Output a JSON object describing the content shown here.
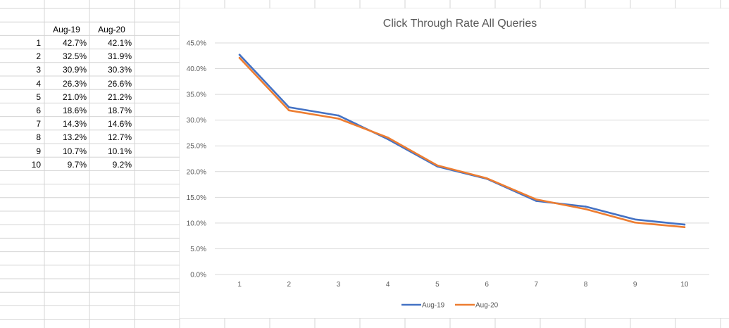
{
  "table": {
    "headers": [
      "Aug-19",
      "Aug-20"
    ],
    "rows": [
      {
        "rank": "1",
        "aug19": "42.7%",
        "aug20": "42.1%"
      },
      {
        "rank": "2",
        "aug19": "32.5%",
        "aug20": "31.9%"
      },
      {
        "rank": "3",
        "aug19": "30.9%",
        "aug20": "30.3%"
      },
      {
        "rank": "4",
        "aug19": "26.3%",
        "aug20": "26.6%"
      },
      {
        "rank": "5",
        "aug19": "21.0%",
        "aug20": "21.2%"
      },
      {
        "rank": "6",
        "aug19": "18.6%",
        "aug20": "18.7%"
      },
      {
        "rank": "7",
        "aug19": "14.3%",
        "aug20": "14.6%"
      },
      {
        "rank": "8",
        "aug19": "13.2%",
        "aug20": "12.7%"
      },
      {
        "rank": "9",
        "aug19": "10.7%",
        "aug20": "10.1%"
      },
      {
        "rank": "10",
        "aug19": "9.7%",
        "aug20": "9.2%"
      }
    ]
  },
  "chart_data": {
    "type": "line",
    "title": "Click Through Rate All Queries",
    "xlabel": "",
    "ylabel": "",
    "categories": [
      "1",
      "2",
      "3",
      "4",
      "5",
      "6",
      "7",
      "8",
      "9",
      "10"
    ],
    "series": [
      {
        "name": "Aug-19",
        "color": "#4472C4",
        "values": [
          42.7,
          32.5,
          30.9,
          26.3,
          21.0,
          18.6,
          14.3,
          13.2,
          10.7,
          9.7
        ]
      },
      {
        "name": "Aug-20",
        "color": "#ED7D31",
        "values": [
          42.1,
          31.9,
          30.3,
          26.6,
          21.2,
          18.7,
          14.6,
          12.7,
          10.1,
          9.2
        ]
      }
    ],
    "ylim": [
      0,
      45
    ],
    "ytick_labels": [
      "0.0%",
      "5.0%",
      "10.0%",
      "15.0%",
      "20.0%",
      "25.0%",
      "30.0%",
      "35.0%",
      "40.0%",
      "45.0%"
    ],
    "grid": true,
    "legend_position": "bottom"
  },
  "colors": {
    "sheet_gridline": "#D4D4D4",
    "chart_gridline": "#D9D9D9",
    "axis_text": "#595959"
  }
}
